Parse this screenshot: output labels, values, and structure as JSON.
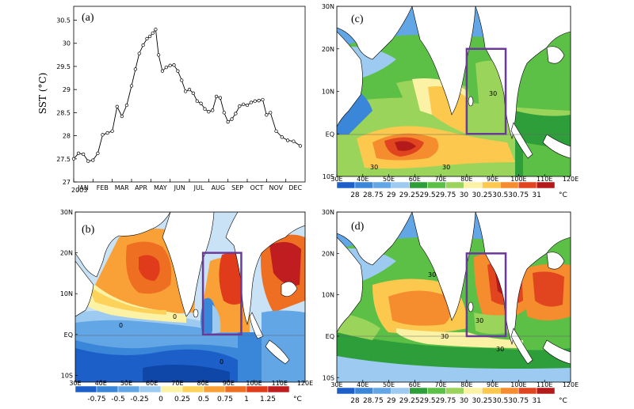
{
  "chart_data": [
    {
      "id": "a",
      "type": "line",
      "panel_label": "(a)",
      "ylabel": "SST (°C)",
      "x_ticks": [
        "JAN",
        "FEB",
        "MAR",
        "APR",
        "MAY",
        "JUN",
        "JUL",
        "AUG",
        "SEP",
        "OCT",
        "NOV",
        "DEC"
      ],
      "x_year": "2003",
      "y_ticks": [
        "27",
        "27.5",
        "28",
        "28.5",
        "29",
        "29.5",
        "30",
        "30.5"
      ],
      "ylim": [
        27,
        30.8
      ],
      "xlim": [
        0,
        12
      ],
      "series": [
        {
          "values": [
            27.5,
            27.62,
            27.6,
            27.45,
            27.47,
            27.62,
            28.02,
            28.06,
            28.1,
            28.63,
            28.42,
            28.66,
            29.08,
            29.44,
            29.78,
            29.96,
            30.1,
            30.15,
            30.22,
            30.3,
            29.75,
            29.4,
            29.48,
            29.52,
            29.53,
            29.4,
            29.2,
            28.96,
            29.0,
            28.92,
            28.75,
            28.7,
            28.58,
            28.52,
            28.55,
            28.85,
            28.82,
            28.5,
            28.3,
            28.36,
            28.48,
            28.64,
            28.68,
            28.66,
            28.72,
            28.75,
            28.76,
            28.78,
            28.45,
            28.5,
            28.1,
            27.97,
            27.9,
            27.88,
            27.78
          ],
          "x": [
            0.0,
            0.25,
            0.5,
            0.75,
            1.0,
            1.25,
            1.5,
            1.75,
            2.0,
            2.25,
            2.5,
            2.75,
            3.0,
            3.2,
            3.4,
            3.6,
            3.8,
            3.95,
            4.1,
            4.25,
            4.4,
            4.6,
            4.8,
            5.0,
            5.2,
            5.4,
            5.6,
            5.8,
            6.0,
            6.2,
            6.4,
            6.6,
            6.8,
            7.0,
            7.2,
            7.4,
            7.6,
            7.8,
            8.0,
            8.2,
            8.4,
            8.6,
            8.8,
            9.0,
            9.2,
            9.4,
            9.6,
            9.8,
            10.0,
            10.2,
            10.5,
            10.8,
            11.1,
            11.4,
            11.75
          ]
        }
      ]
    },
    {
      "id": "b",
      "type": "heatmap",
      "panel_label": "(b)",
      "lon_ticks": [
        "30E",
        "40E",
        "50E",
        "60E",
        "70E",
        "80E",
        "90E",
        "100E",
        "110E",
        "120E"
      ],
      "lat_ticks": [
        "30N",
        "20N",
        "10N",
        "EQ",
        "10S"
      ],
      "colorbar_labels": [
        "-0.75",
        "-0.5",
        "-0.25",
        "0",
        "0.25",
        "0.5",
        "0.75",
        "1",
        "1.25"
      ],
      "colorbar_unit": "°C",
      "colors": [
        "#1c5fc9",
        "#3a86d9",
        "#62a6e6",
        "#9ccaf0",
        "#fbf2a6",
        "#fcd25b",
        "#f9a136",
        "#ef6f22",
        "#e03c1c",
        "#bf1d1f"
      ],
      "contour_labels": [
        "0",
        "0",
        "0"
      ],
      "box_lon": [
        80,
        95
      ],
      "box_lat": [
        0,
        20
      ]
    },
    {
      "id": "c",
      "type": "heatmap",
      "panel_label": "(c)",
      "lon_ticks": [
        "30E",
        "40E",
        "50E",
        "60E",
        "70E",
        "80E",
        "90E",
        "100E",
        "110E",
        "120E"
      ],
      "lat_ticks": [
        "30N",
        "20N",
        "10N",
        "EQ",
        "10S"
      ],
      "colorbar_labels": [
        "28",
        "28.75",
        "29",
        "29.25",
        "29.5",
        "29.75",
        "30",
        "30.25",
        "30.5",
        "30.75",
        "31"
      ],
      "colorbar_unit": "°C",
      "colors": [
        "#1c5fc9",
        "#3a86d9",
        "#62a6e6",
        "#9ccaf0",
        "#2e9e3a",
        "#5cbf46",
        "#9ad45a",
        "#fbf2a6",
        "#fcc84d",
        "#f58c2e",
        "#e0451f",
        "#b41a1a"
      ],
      "contour_labels": [
        "30",
        "30",
        "30"
      ],
      "box_lon": [
        80,
        95
      ],
      "box_lat": [
        0,
        20
      ]
    },
    {
      "id": "d",
      "type": "heatmap",
      "panel_label": "(d)",
      "lon_ticks": [
        "30E",
        "40E",
        "50E",
        "60E",
        "70E",
        "80E",
        "90E",
        "100E",
        "110E",
        "120E"
      ],
      "lat_ticks": [
        "30N",
        "20N",
        "10N",
        "EQ",
        "10S"
      ],
      "colorbar_labels": [
        "28",
        "28.75",
        "29",
        "29.25",
        "29.5",
        "29.75",
        "30",
        "30.25",
        "30.5",
        "30.75",
        "31"
      ],
      "colorbar_unit": "°C",
      "colors": [
        "#1c5fc9",
        "#3a86d9",
        "#62a6e6",
        "#9ccaf0",
        "#2e9e3a",
        "#5cbf46",
        "#9ad45a",
        "#fbf2a6",
        "#fcc84d",
        "#f58c2e",
        "#e0451f",
        "#b41a1a"
      ],
      "contour_labels": [
        "30",
        "30",
        "30",
        "30"
      ],
      "box_lon": [
        80,
        95
      ],
      "box_lat": [
        0,
        20
      ]
    }
  ]
}
